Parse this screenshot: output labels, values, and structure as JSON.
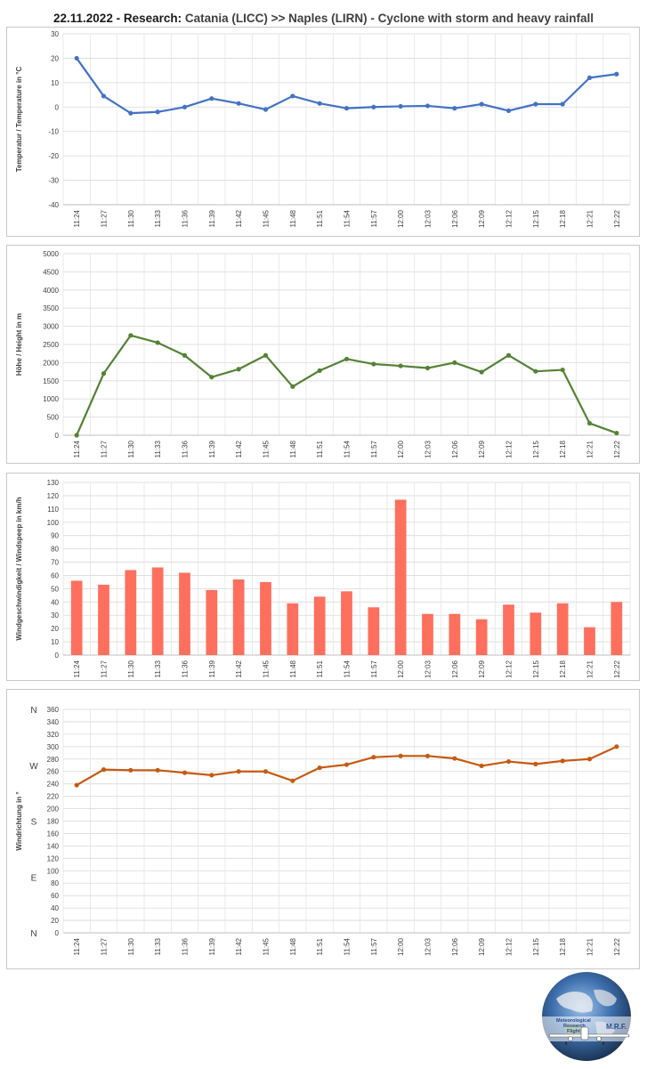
{
  "header": {
    "date": "22.11.2022",
    "research_label": "Research:",
    "route": "Catania (LICC) >> Naples (LIRN) - Cyclone with storm and heavy rainfall"
  },
  "logo": {
    "line1": "Meteorological",
    "line2": "Research",
    "line3": "Flight",
    "abbr": "M.R.F."
  },
  "chart_data": [
    {
      "type": "line",
      "ylabel": "Temperatur / Temperature in °C",
      "ylim": [
        -40,
        30
      ],
      "ystep": 10,
      "grid": true,
      "color": "#4472c4",
      "categories": [
        "11:24",
        "11:27",
        "11:30",
        "11:33",
        "11:36",
        "11:39",
        "11:42",
        "11:45",
        "11:48",
        "11:51",
        "11:54",
        "11:57",
        "12:00",
        "12:03",
        "12:06",
        "12:09",
        "12:12",
        "12:15",
        "12:18",
        "12:21",
        "12:22"
      ],
      "values": [
        20,
        4.5,
        -2.5,
        -2,
        0,
        3.5,
        1.5,
        -1,
        4.5,
        1.5,
        -0.5,
        0,
        0.3,
        0.5,
        -0.5,
        1.2,
        -1.5,
        1.2,
        1.2,
        12,
        13.5
      ]
    },
    {
      "type": "line",
      "ylabel": "Höhe / Height in m",
      "ylim": [
        0,
        5000
      ],
      "ystep": 500,
      "grid": true,
      "color": "#548235",
      "categories": [
        "11:24",
        "11:27",
        "11:30",
        "11:33",
        "11:36",
        "11:39",
        "11:42",
        "11:45",
        "11:48",
        "11:51",
        "11:54",
        "11:57",
        "12:00",
        "12:03",
        "12:06",
        "12:09",
        "12:12",
        "12:15",
        "12:18",
        "12:21",
        "12:22"
      ],
      "values": [
        0,
        1700,
        2750,
        2550,
        2200,
        1600,
        1820,
        2200,
        1340,
        1780,
        2100,
        1960,
        1910,
        1850,
        2000,
        1740,
        2200,
        1760,
        1800,
        330,
        60
      ]
    },
    {
      "type": "bar",
      "ylabel": "Windgeschwindigkeit  / Windspeep in km/h",
      "ylim": [
        0,
        130
      ],
      "ystep": 10,
      "grid": true,
      "color": "#ff6f5e",
      "categories": [
        "11:24",
        "11:27",
        "11:30",
        "11:33",
        "11:36",
        "11:39",
        "11:42",
        "11:45",
        "11:48",
        "11:51",
        "11:54",
        "11:57",
        "12:00",
        "12:03",
        "12:06",
        "12:09",
        "12:12",
        "12:15",
        "12:18",
        "12:21",
        "12:22"
      ],
      "values": [
        56,
        53,
        64,
        66,
        62,
        49,
        57,
        55,
        39,
        44,
        48,
        36,
        117,
        31,
        31,
        27,
        38,
        32,
        39,
        21,
        40
      ]
    },
    {
      "type": "line",
      "ylabel": "Windrichtung in °",
      "ylim": [
        0,
        360
      ],
      "ystep": 20,
      "grid": true,
      "color": "#c55a11",
      "compass": [
        {
          "label": "N",
          "value": 360
        },
        {
          "label": "W",
          "value": 270
        },
        {
          "label": "S",
          "value": 180
        },
        {
          "label": "E",
          "value": 90
        },
        {
          "label": "N",
          "value": 0
        }
      ],
      "categories": [
        "11:24",
        "11:27",
        "11:30",
        "11:33",
        "11:36",
        "11:39",
        "11:42",
        "11:45",
        "11:48",
        "11:51",
        "11:54",
        "11:57",
        "12:00",
        "12:03",
        "12:06",
        "12:09",
        "12:12",
        "12:15",
        "12:18",
        "12:21",
        "12:22"
      ],
      "values": [
        238,
        263,
        262,
        262,
        258,
        254,
        260,
        260,
        245,
        266,
        271,
        283,
        285,
        285,
        281,
        269,
        276,
        272,
        277,
        280,
        300
      ]
    }
  ]
}
